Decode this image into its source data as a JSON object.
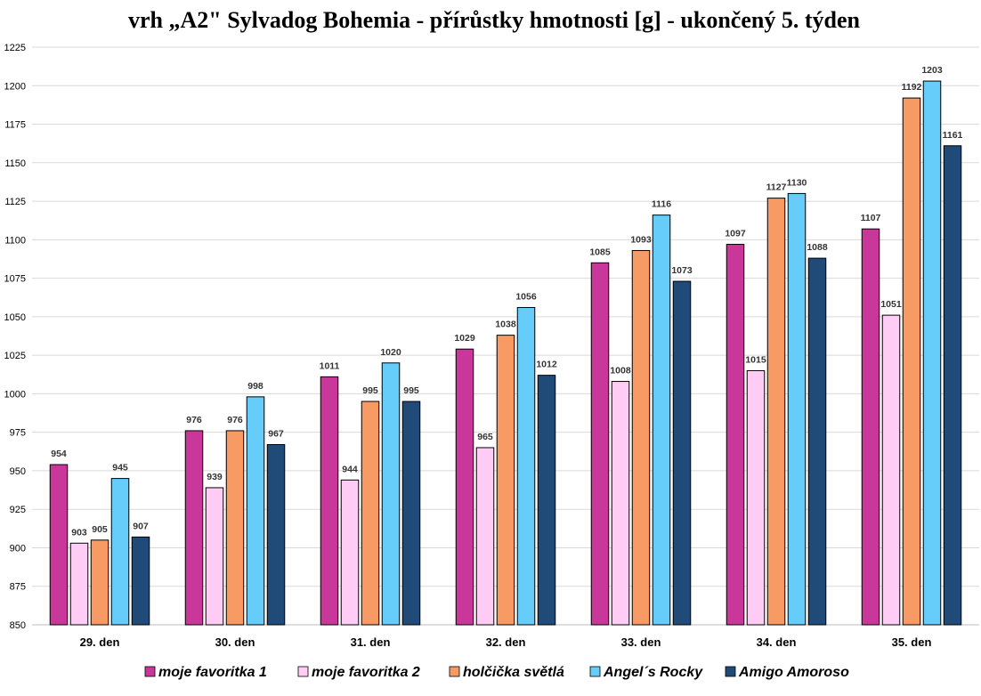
{
  "chart_data": {
    "type": "bar",
    "title": "vrh „A2\" Sylvadog Bohemia - přírůstky hmotnosti [g] - ukončený 5. týden",
    "xlabel": "",
    "ylabel": "",
    "ylim": [
      850,
      1225
    ],
    "ytick_step": 25,
    "grid": true,
    "legend_position": "bottom",
    "categories": [
      "29. den",
      "30. den",
      "31. den",
      "32. den",
      "33. den",
      "34. den",
      "35. den"
    ],
    "series": [
      {
        "name": "moje favoritka 1",
        "color": "#c9379b",
        "values": [
          954,
          976,
          1011,
          1029,
          1085,
          1097,
          1107
        ]
      },
      {
        "name": "moje favoritka 2",
        "color": "#ffccf5",
        "values": [
          903,
          939,
          944,
          965,
          1008,
          1015,
          1051
        ]
      },
      {
        "name": "holčička světlá",
        "color": "#f79a64",
        "values": [
          905,
          976,
          995,
          1038,
          1093,
          1127,
          1192
        ]
      },
      {
        "name": "Angel´s Rocky",
        "color": "#66ccf9",
        "values": [
          945,
          998,
          1020,
          1056,
          1116,
          1130,
          1203
        ]
      },
      {
        "name": "Amigo Amoroso",
        "color": "#204b78",
        "values": [
          907,
          967,
          995,
          1012,
          1073,
          1088,
          1161
        ]
      }
    ]
  }
}
